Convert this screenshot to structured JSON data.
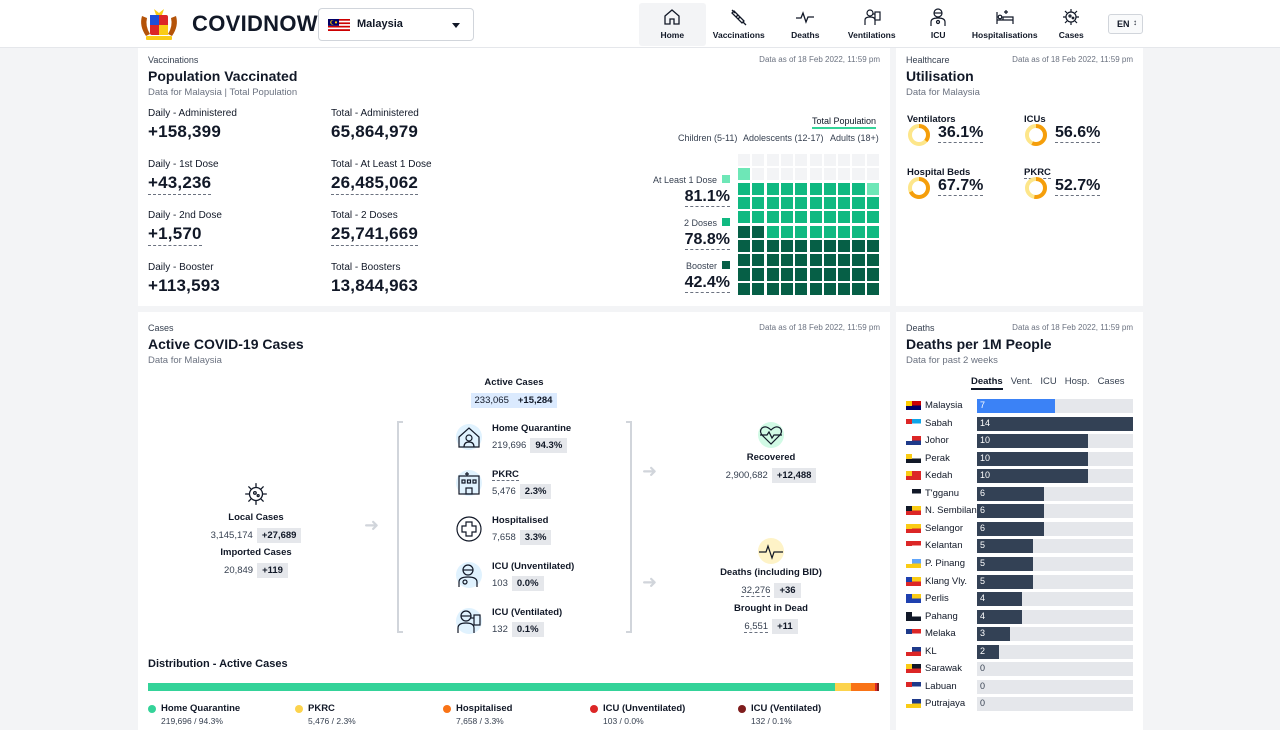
{
  "header": {
    "brand": "COVIDNOW",
    "country": "Malaysia",
    "nav": [
      "Home",
      "Vaccinations",
      "Deaths",
      "Ventilations",
      "ICU",
      "Hospitalisations",
      "Cases"
    ],
    "lang": "EN"
  },
  "vacc": {
    "kicker": "Vaccinations",
    "title": "Population Vaccinated",
    "sub": "Data for Malaysia | Total Population",
    "date": "Data as of 18 Feb 2022, 11:59 pm",
    "stats": [
      {
        "label": "Daily - Administered",
        "value": "+158,399"
      },
      {
        "label": "Total - Administered",
        "value": "65,864,979"
      },
      {
        "label": "Daily - 1st Dose",
        "value": "+43,236"
      },
      {
        "label": "Total - At Least 1 Dose",
        "value": "26,485,062"
      },
      {
        "label": "Daily - 2nd Dose",
        "value": "+1,570"
      },
      {
        "label": "Total - 2 Doses",
        "value": "25,741,669"
      },
      {
        "label": "Daily - Booster",
        "value": "+113,593"
      },
      {
        "label": "Total - Boosters",
        "value": "13,844,963"
      }
    ],
    "tab_total": "Total Population",
    "tabs": [
      "Children (5-11)",
      "Adolescents (12-17)",
      "Adults (18+)"
    ],
    "legend": [
      {
        "label": "At Least 1 Dose",
        "value": "81.1%",
        "pct": 81.1,
        "color": "#6ee7b7"
      },
      {
        "label": "2 Doses",
        "value": "78.8%",
        "pct": 78.8,
        "color": "#10b981"
      },
      {
        "label": "Booster",
        "value": "42.4%",
        "pct": 42.4,
        "color": "#065f46"
      }
    ]
  },
  "health": {
    "kicker": "Healthcare",
    "title": "Utilisation",
    "sub": "Data for Malaysia",
    "date": "Data as of 18 Feb 2022, 11:59 pm",
    "items": [
      {
        "label": "Ventilators",
        "value": "36.1%",
        "pct": 36.1
      },
      {
        "label": "ICUs",
        "value": "56.6%",
        "pct": 56.6
      },
      {
        "label": "Hospital Beds",
        "value": "67.7%",
        "pct": 67.7
      },
      {
        "label": "PKRC",
        "value": "52.7%",
        "pct": 52.7
      }
    ],
    "ring_color": "#f59e0b"
  },
  "cases": {
    "kicker": "Cases",
    "title": "Active COVID-19 Cases",
    "sub": "Data for Malaysia",
    "date": "Data as of 18 Feb 2022, 11:59 pm",
    "active": {
      "label": "Active Cases",
      "value": "233,065",
      "delta": "+15,284"
    },
    "local": {
      "label": "Local Cases",
      "value": "3,145,174",
      "delta": "+27,689"
    },
    "imported": {
      "label": "Imported Cases",
      "value": "20,849",
      "delta": "+119"
    },
    "items": [
      {
        "label": "Home Quarantine",
        "value": "219,696",
        "pct": "94.3%"
      },
      {
        "label": "PKRC",
        "value": "5,476",
        "pct": "2.3%"
      },
      {
        "label": "Hospitalised",
        "value": "7,658",
        "pct": "3.3%"
      },
      {
        "label": "ICU (Unventilated)",
        "value": "103",
        "pct": "0.0%"
      },
      {
        "label": "ICU (Ventilated)",
        "value": "132",
        "pct": "0.1%"
      }
    ],
    "recovered": {
      "label": "Recovered",
      "value": "2,900,682",
      "delta": "+12,488"
    },
    "deaths": {
      "label": "Deaths (including BID)",
      "value": "32,276",
      "delta": "+36"
    },
    "bid": {
      "label": "Brought in Dead",
      "value": "6,551",
      "delta": "+11"
    },
    "dist_title": "Distribution - Active Cases",
    "dist": [
      {
        "label": "Home Quarantine",
        "detail": "219,696 / 94.3%",
        "share": 94.3,
        "color": "#34d399"
      },
      {
        "label": "PKRC",
        "detail": "5,476 / 2.3%",
        "share": 2.3,
        "color": "#fcd34d"
      },
      {
        "label": "Hospitalised",
        "detail": "7,658 / 3.3%",
        "share": 3.3,
        "color": "#f97316"
      },
      {
        "label": "ICU (Unventilated)",
        "detail": "103 / 0.0%",
        "share": 0.04,
        "color": "#dc2626"
      },
      {
        "label": "ICU (Ventilated)",
        "detail": "132 / 0.1%",
        "share": 0.1,
        "color": "#7f1d1d"
      }
    ]
  },
  "deaths": {
    "kicker": "Deaths",
    "title": "Deaths per 1M People",
    "sub": "Data for past 2 weeks",
    "date": "Data as of 18 Feb 2022, 11:59 pm",
    "tabs": [
      "Deaths",
      "Vent.",
      "ICU",
      "Hosp.",
      "Cases"
    ],
    "max": 14,
    "rows": [
      {
        "state": "Malaysia",
        "value": 7
      },
      {
        "state": "Sabah",
        "value": 14
      },
      {
        "state": "Johor",
        "value": 10
      },
      {
        "state": "Perak",
        "value": 10
      },
      {
        "state": "Kedah",
        "value": 10
      },
      {
        "state": "T'gganu",
        "value": 6
      },
      {
        "state": "N. Sembilan",
        "value": 6
      },
      {
        "state": "Selangor",
        "value": 6
      },
      {
        "state": "Kelantan",
        "value": 5
      },
      {
        "state": "P. Pinang",
        "value": 5
      },
      {
        "state": "Klang Vly.",
        "value": 5
      },
      {
        "state": "Perlis",
        "value": 4
      },
      {
        "state": "Pahang",
        "value": 4
      },
      {
        "state": "Melaka",
        "value": 3
      },
      {
        "state": "KL",
        "value": 2
      },
      {
        "state": "Sarawak",
        "value": 0
      },
      {
        "state": "Labuan",
        "value": 0
      },
      {
        "state": "Putrajaya",
        "value": 0
      }
    ]
  }
}
